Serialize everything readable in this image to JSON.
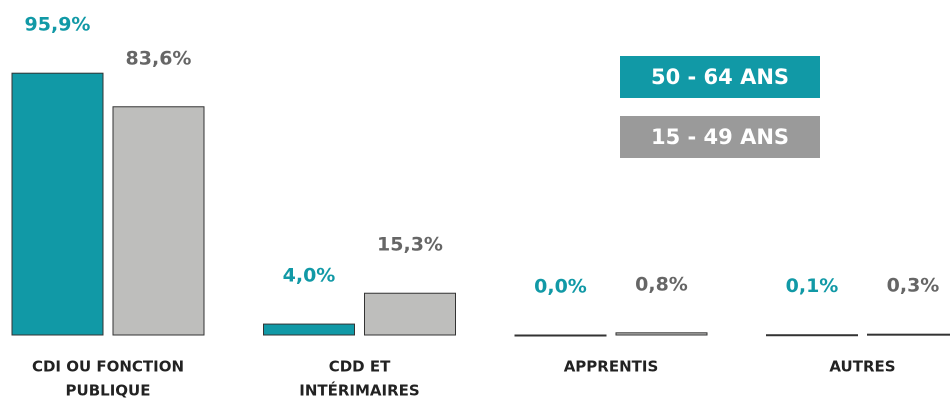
{
  "chart_data": {
    "type": "bar",
    "categories": [
      [
        "CDI OU FONCTION",
        "PUBLIQUE"
      ],
      [
        "CDD ET",
        "INTÉRIMAIRES"
      ],
      [
        "APPRENTIS"
      ],
      [
        "AUTRES"
      ]
    ],
    "series": [
      {
        "name": "50 - 64 ANS",
        "color": "#1199a6",
        "values": [
          95.9,
          4.0,
          0.0,
          0.1
        ],
        "value_labels": [
          "95,9%",
          "4,0%",
          "0,0%",
          "0,1%"
        ]
      },
      {
        "name": "15 - 49 ANS",
        "color": "#bebebc",
        "values": [
          83.6,
          15.3,
          0.8,
          0.3
        ],
        "value_labels": [
          "83,6%",
          "15,3%",
          "0,8%",
          "0,3%"
        ]
      }
    ],
    "legend_colors": [
      "#1199a6",
      "#9a9a9a"
    ],
    "label_colors": [
      "#1199a6",
      "#666666"
    ],
    "ylim": [
      0,
      100
    ]
  }
}
